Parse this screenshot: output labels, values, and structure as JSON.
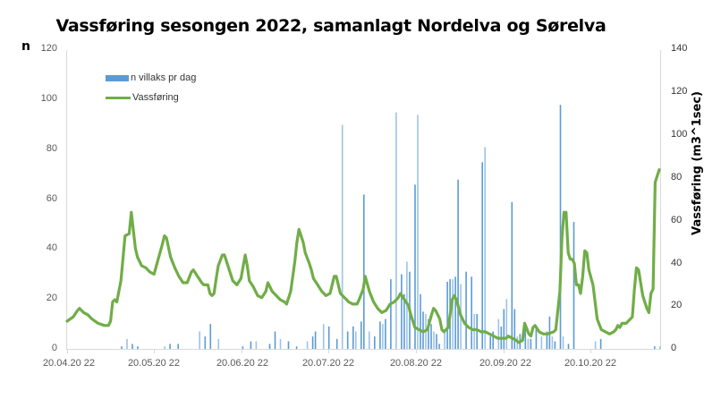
{
  "chart_data": {
    "type": "bar+line",
    "title": "Vassføring sesongen 2022, samanlagt Nordelva og Sørelva",
    "ylabel_left": "n",
    "ylabel_right": "Vassføring (m3^1sec)",
    "xlabel": "",
    "ylim_left": [
      0,
      120
    ],
    "ylim_right": [
      0,
      140
    ],
    "yticks_left": [
      "0",
      "20",
      "40",
      "60",
      "80",
      "100",
      "120"
    ],
    "yticks_right": [
      "0",
      "20",
      "40",
      "60",
      "80",
      "100",
      "120",
      "140"
    ],
    "x_tick_labels": [
      "20.04.20 22",
      "20.05.20 22",
      "20.06.20 22",
      "20.07.20 22",
      "20.08.20 22",
      "20.09.20 22",
      "20.10.20 22"
    ],
    "grid": false,
    "legend_position": "top-left inside",
    "legend": [
      "n villaks pr dag",
      "Vassføring"
    ],
    "colors": {
      "bars": "#5b9bd5",
      "bars_light": "#9dc3e6",
      "line": "#70ad47"
    },
    "x_start": "20.04.2022",
    "days": 214,
    "series": [
      {
        "name": "n villaks pr dag",
        "axis": "left",
        "type": "bar",
        "points": [
          [
            20,
            1
          ],
          [
            22,
            4
          ],
          [
            24,
            2
          ],
          [
            26,
            1
          ],
          [
            36,
            1
          ],
          [
            38,
            2
          ],
          [
            41,
            2
          ],
          [
            49,
            7
          ],
          [
            51,
            5
          ],
          [
            53,
            10
          ],
          [
            56,
            4
          ],
          [
            65,
            1
          ],
          [
            68,
            3
          ],
          [
            70,
            3
          ],
          [
            75,
            2
          ],
          [
            77,
            7
          ],
          [
            79,
            4
          ],
          [
            82,
            3
          ],
          [
            85,
            1
          ],
          [
            89,
            3
          ],
          [
            91,
            5
          ],
          [
            92,
            7
          ],
          [
            95,
            10
          ],
          [
            97,
            9
          ],
          [
            100,
            4
          ],
          [
            102,
            90
          ],
          [
            104,
            7
          ],
          [
            106,
            9
          ],
          [
            107,
            7
          ],
          [
            109,
            11
          ],
          [
            110,
            62
          ],
          [
            112,
            7
          ],
          [
            114,
            5
          ],
          [
            116,
            11
          ],
          [
            117,
            10
          ],
          [
            118,
            12
          ],
          [
            120,
            28
          ],
          [
            122,
            95
          ],
          [
            124,
            30
          ],
          [
            125,
            22
          ],
          [
            126,
            35
          ],
          [
            127,
            31
          ],
          [
            129,
            66
          ],
          [
            130,
            94
          ],
          [
            131,
            22
          ],
          [
            132,
            15
          ],
          [
            133,
            14
          ],
          [
            134,
            12
          ],
          [
            135,
            10
          ],
          [
            136,
            7
          ],
          [
            137,
            6
          ],
          [
            138,
            2
          ],
          [
            140,
            7
          ],
          [
            141,
            27
          ],
          [
            142,
            28
          ],
          [
            143,
            28
          ],
          [
            144,
            29
          ],
          [
            145,
            68
          ],
          [
            146,
            26
          ],
          [
            148,
            31
          ],
          [
            150,
            29
          ],
          [
            151,
            14
          ],
          [
            152,
            14
          ],
          [
            154,
            75
          ],
          [
            155,
            81
          ],
          [
            157,
            5
          ],
          [
            158,
            7
          ],
          [
            160,
            12
          ],
          [
            161,
            9
          ],
          [
            162,
            16
          ],
          [
            163,
            20
          ],
          [
            165,
            59
          ],
          [
            166,
            16
          ],
          [
            167,
            5
          ],
          [
            168,
            6
          ],
          [
            170,
            8
          ],
          [
            171,
            4
          ],
          [
            172,
            4
          ],
          [
            174,
            8
          ],
          [
            176,
            5
          ],
          [
            178,
            7
          ],
          [
            179,
            13
          ],
          [
            180,
            5
          ],
          [
            181,
            3
          ],
          [
            183,
            98
          ],
          [
            184,
            5
          ],
          [
            186,
            2
          ],
          [
            188,
            51
          ],
          [
            196,
            3
          ],
          [
            198,
            4
          ],
          [
            218,
            1
          ],
          [
            220,
            1
          ]
        ]
      },
      {
        "name": "Vassføring",
        "axis": "right",
        "type": "line",
        "points": [
          [
            0,
            13
          ],
          [
            3,
            15
          ],
          [
            5,
            18
          ],
          [
            6,
            19
          ],
          [
            8,
            17
          ],
          [
            10,
            16
          ],
          [
            12,
            14
          ],
          [
            15,
            12
          ],
          [
            18,
            11
          ],
          [
            20,
            11
          ],
          [
            21,
            13
          ],
          [
            22,
            22
          ],
          [
            23,
            23
          ],
          [
            24,
            22
          ],
          [
            26,
            32
          ],
          [
            28,
            53
          ],
          [
            30,
            54
          ],
          [
            31,
            64
          ],
          [
            33,
            47
          ],
          [
            34,
            43
          ],
          [
            36,
            39
          ],
          [
            38,
            38
          ],
          [
            40,
            36
          ],
          [
            42,
            35
          ],
          [
            44,
            42
          ],
          [
            46,
            49
          ],
          [
            47,
            53
          ],
          [
            48,
            52
          ],
          [
            50,
            43
          ],
          [
            52,
            38
          ],
          [
            54,
            34
          ],
          [
            56,
            31
          ],
          [
            58,
            31
          ],
          [
            60,
            36
          ],
          [
            61,
            37
          ],
          [
            63,
            34
          ],
          [
            65,
            31
          ],
          [
            66,
            30
          ],
          [
            68,
            30
          ],
          [
            69,
            26
          ],
          [
            70,
            25
          ],
          [
            71,
            26
          ],
          [
            72,
            33
          ],
          [
            73,
            39
          ],
          [
            75,
            44
          ],
          [
            76,
            44
          ],
          [
            78,
            38
          ],
          [
            80,
            32
          ],
          [
            82,
            30
          ],
          [
            84,
            33
          ],
          [
            86,
            44
          ],
          [
            87,
            39
          ],
          [
            88,
            32
          ],
          [
            90,
            29
          ],
          [
            92,
            25
          ],
          [
            94,
            24
          ],
          [
            96,
            27
          ],
          [
            97,
            31
          ],
          [
            99,
            27
          ],
          [
            101,
            25
          ],
          [
            103,
            23
          ],
          [
            105,
            22
          ],
          [
            106,
            21
          ],
          [
            108,
            27
          ],
          [
            110,
            41
          ],
          [
            111,
            50
          ],
          [
            112,
            56
          ],
          [
            114,
            50
          ],
          [
            115,
            45
          ],
          [
            117,
            40
          ],
          [
            118,
            37
          ],
          [
            119,
            33
          ],
          [
            121,
            30
          ],
          [
            123,
            27
          ],
          [
            125,
            25
          ],
          [
            127,
            26
          ],
          [
            129,
            34
          ],
          [
            130,
            34
          ],
          [
            132,
            26
          ],
          [
            134,
            24
          ],
          [
            136,
            22
          ],
          [
            138,
            21
          ],
          [
            140,
            21
          ],
          [
            141,
            23
          ],
          [
            143,
            28
          ],
          [
            144,
            34
          ],
          [
            146,
            27
          ],
          [
            148,
            22
          ],
          [
            150,
            19
          ],
          [
            152,
            17
          ],
          [
            154,
            18
          ],
          [
            156,
            21
          ],
          [
            158,
            22
          ],
          [
            160,
            24
          ],
          [
            161,
            26
          ],
          [
            163,
            23
          ],
          [
            165,
            20
          ],
          [
            166,
            16
          ],
          [
            168,
            10
          ],
          [
            170,
            9
          ],
          [
            172,
            8
          ],
          [
            174,
            9
          ],
          [
            176,
            16
          ],
          [
            177,
            19
          ],
          [
            178,
            18
          ],
          [
            180,
            14
          ],
          [
            181,
            9
          ],
          [
            182,
            8
          ],
          [
            183,
            9
          ],
          [
            184,
            10
          ],
          [
            185,
            16
          ],
          [
            186,
            23
          ],
          [
            187,
            25
          ],
          [
            188,
            23
          ],
          [
            190,
            16
          ],
          [
            192,
            12
          ],
          [
            194,
            10
          ],
          [
            196,
            9
          ],
          [
            198,
            9
          ],
          [
            200,
            8
          ],
          [
            202,
            8
          ],
          [
            204,
            7
          ],
          [
            206,
            6
          ],
          [
            208,
            5
          ],
          [
            210,
            5
          ],
          [
            212,
            5
          ],
          [
            213,
            6
          ],
          [
            215,
            5
          ],
          [
            217,
            4
          ],
          [
            218,
            3
          ],
          [
            220,
            4
          ],
          [
            221,
            12
          ],
          [
            223,
            7
          ],
          [
            224,
            6
          ],
          [
            225,
            10
          ],
          [
            226,
            11
          ],
          [
            228,
            8
          ],
          [
            230,
            7
          ],
          [
            232,
            7
          ],
          [
            235,
            8
          ],
          [
            236,
            9
          ],
          [
            238,
            27
          ],
          [
            239,
            52
          ],
          [
            240,
            64
          ],
          [
            241,
            64
          ],
          [
            242,
            45
          ],
          [
            243,
            42
          ],
          [
            244,
            42
          ],
          [
            245,
            40
          ],
          [
            246,
            30
          ],
          [
            247,
            30
          ],
          [
            248,
            26
          ],
          [
            249,
            34
          ],
          [
            250,
            46
          ],
          [
            251,
            45
          ],
          [
            252,
            37
          ],
          [
            254,
            30
          ],
          [
            256,
            14
          ],
          [
            258,
            9
          ],
          [
            260,
            8
          ],
          [
            262,
            7
          ],
          [
            264,
            8
          ],
          [
            265,
            9
          ],
          [
            266,
            11
          ],
          [
            267,
            10
          ],
          [
            268,
            12
          ],
          [
            270,
            12
          ],
          [
            272,
            14
          ],
          [
            273,
            15
          ],
          [
            274,
            28
          ],
          [
            275,
            38
          ],
          [
            276,
            37
          ],
          [
            278,
            25
          ],
          [
            280,
            19
          ],
          [
            281,
            17
          ],
          [
            282,
            26
          ],
          [
            283,
            28
          ],
          [
            284,
            78
          ],
          [
            286,
            84
          ]
        ]
      }
    ]
  }
}
